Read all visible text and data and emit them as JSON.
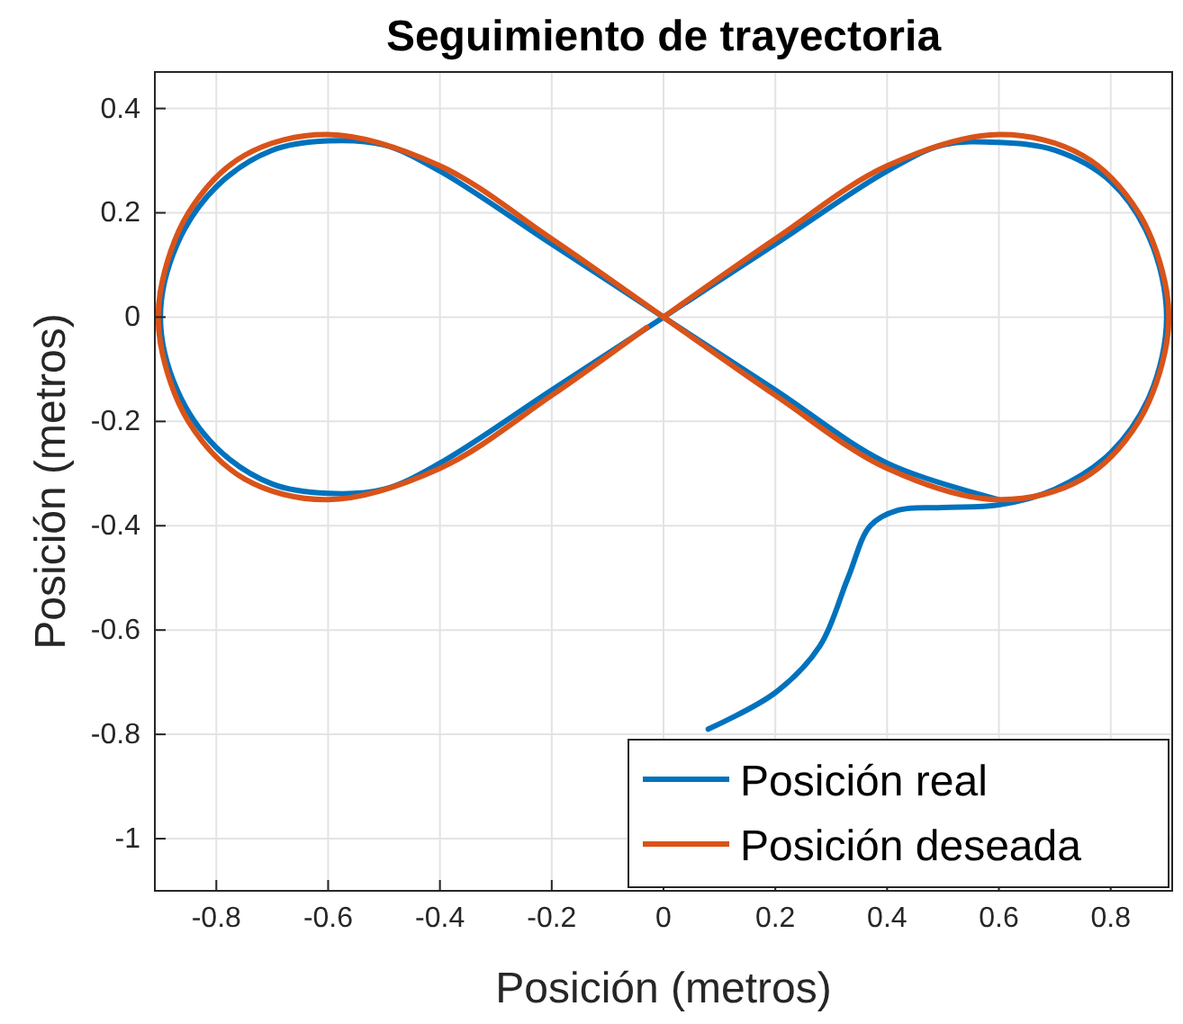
{
  "chart_data": {
    "type": "line",
    "title": "Seguimiento de trayectoria",
    "xlabel": "Posición (metros)",
    "ylabel": "Posición (metros)",
    "xlim": [
      -0.91,
      0.91
    ],
    "ylim": [
      -1.1,
      0.47
    ],
    "xticks": [
      -0.8,
      -0.6,
      -0.4,
      -0.2,
      0,
      0.2,
      0.4,
      0.6,
      0.8
    ],
    "yticks": [
      -1,
      -0.8,
      -0.6,
      -0.4,
      -0.2,
      0,
      0.2,
      0.4
    ],
    "grid": true,
    "legend": "bottom right",
    "line_style": "solid",
    "series": [
      {
        "name": "Posición real",
        "color": "#0072bd",
        "x": [
          0.08,
          0.2,
          0.28,
          0.33,
          0.37,
          0.42,
          0.5,
          0.6,
          0.7,
          0.8,
          0.87,
          0.9,
          0.87,
          0.8,
          0.7,
          0.6,
          0.5,
          0.4,
          0.2,
          0,
          -0.2,
          -0.4,
          -0.5,
          -0.6,
          -0.7,
          -0.8,
          -0.87,
          -0.9,
          -0.87,
          -0.8,
          -0.7,
          -0.6,
          -0.5,
          -0.4,
          -0.2,
          0,
          0.2,
          0.4,
          0.6
        ],
        "values": [
          -0.79,
          -0.72,
          -0.63,
          -0.5,
          -0.4,
          -0.37,
          -0.365,
          -0.36,
          -0.33,
          -0.26,
          -0.15,
          0,
          0.15,
          0.26,
          0.32,
          0.335,
          0.33,
          0.28,
          0.14,
          0,
          -0.14,
          -0.28,
          -0.33,
          -0.338,
          -0.32,
          -0.25,
          -0.14,
          0,
          0.14,
          0.25,
          0.32,
          0.338,
          0.33,
          0.28,
          0.14,
          0,
          -0.14,
          -0.28,
          -0.35
        ]
      },
      {
        "name": "Posición deseada",
        "color": "#d95319",
        "x": [
          0,
          0.2,
          0.4,
          0.6,
          0.75,
          0.85,
          0.9,
          0.9,
          0.85,
          0.75,
          0.6,
          0.4,
          0.2,
          0,
          -0.2,
          -0.4,
          -0.6,
          -0.75,
          -0.85,
          -0.9,
          -0.9,
          -0.85,
          -0.75,
          -0.6,
          -0.4,
          -0.2,
          -0.03
        ],
        "values": [
          0,
          0.15,
          0.29,
          0.35,
          0.31,
          0.2,
          0.05,
          -0.05,
          -0.2,
          -0.31,
          -0.35,
          -0.29,
          -0.15,
          0,
          0.15,
          0.29,
          0.35,
          0.31,
          0.2,
          0.05,
          -0.05,
          -0.2,
          -0.31,
          -0.35,
          -0.29,
          -0.15,
          -0.02
        ]
      }
    ]
  }
}
